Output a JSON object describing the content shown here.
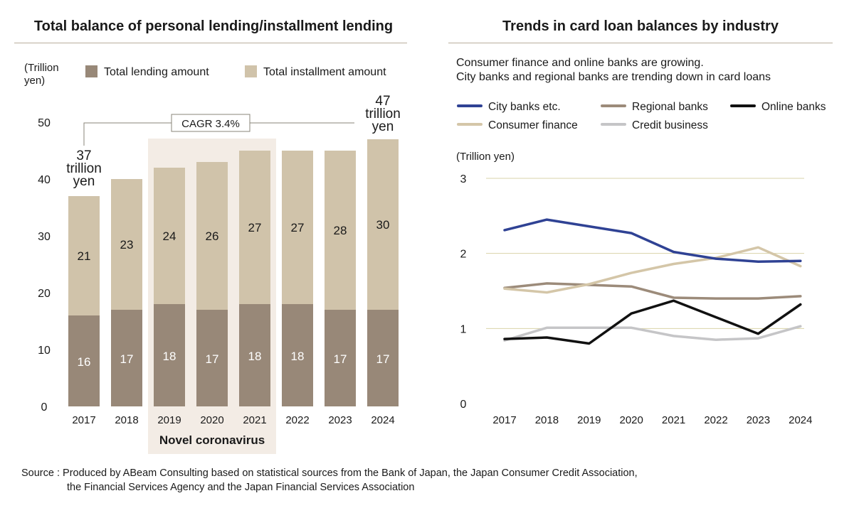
{
  "colors": {
    "lending": "#988878",
    "installment": "#d0c3aa",
    "highlight": "#f3ece5",
    "rule": "#b9ae9c",
    "grid": "#d9d3a8",
    "city": "#2f4294",
    "regional": "#9c8b7a",
    "online": "#111111",
    "consumer": "#d4c6a8",
    "credit": "#c5c5c7"
  },
  "left": {
    "title": "Total balance of personal lending/installment lending",
    "unit": "(Trillion yen)",
    "legend": [
      "Total lending amount",
      "Total installment amount"
    ],
    "cagr": "CAGR 3.4%",
    "start_total": "37 trillion yen",
    "end_total": "47 trillion yen",
    "highlight_label": "Novel coronavirus"
  },
  "right": {
    "title": "Trends in card loan balances by industry",
    "subtitle1": "Consumer finance and online banks are growing.",
    "subtitle2": "City banks and regional banks are trending down in card loans",
    "unit": "(Trillion yen)"
  },
  "source": {
    "line1": "Source : Produced by ABeam Consulting based on statistical sources from the Bank of Japan, the Japan Consumer Credit Association,",
    "line2": "the Financial Services Agency and the Japan Financial Services Association"
  },
  "chart_data": [
    {
      "type": "bar",
      "stacked": true,
      "categories": [
        "2017",
        "2018",
        "2019",
        "2020",
        "2021",
        "2022",
        "2023",
        "2024"
      ],
      "series": [
        {
          "name": "Total lending amount",
          "values": [
            16,
            17,
            18,
            17,
            18,
            18,
            17,
            17
          ]
        },
        {
          "name": "Total installment amount",
          "values": [
            21,
            23,
            24,
            26,
            27,
            27,
            28,
            30
          ]
        }
      ],
      "ylim": [
        0,
        50
      ],
      "yticks": [
        0,
        10,
        20,
        30,
        40,
        50
      ],
      "highlight_categories": [
        "2019",
        "2020",
        "2021"
      ],
      "legend_position": "top"
    },
    {
      "type": "line",
      "x": [
        "2017",
        "2018",
        "2019",
        "2020",
        "2021",
        "2022",
        "2023",
        "2024"
      ],
      "series": [
        {
          "name": "City banks etc.",
          "color_key": "city",
          "values": [
            2.31,
            2.45,
            2.36,
            2.27,
            2.02,
            1.93,
            1.89,
            1.9
          ]
        },
        {
          "name": "Regional banks",
          "color_key": "regional",
          "values": [
            1.54,
            1.6,
            1.58,
            1.56,
            1.41,
            1.4,
            1.4,
            1.43
          ]
        },
        {
          "name": "Online banks",
          "color_key": "online",
          "values": [
            0.86,
            0.88,
            0.8,
            1.2,
            1.37,
            1.15,
            0.93,
            1.32
          ]
        },
        {
          "name": "Consumer finance",
          "color_key": "consumer",
          "values": [
            1.53,
            1.48,
            1.59,
            1.74,
            1.86,
            1.94,
            2.08,
            1.83
          ]
        },
        {
          "name": "Credit business",
          "color_key": "credit",
          "values": [
            0.84,
            1.01,
            1.01,
            1.01,
            0.9,
            0.85,
            0.87,
            1.03
          ]
        }
      ],
      "ylim": [
        0,
        3
      ],
      "yticks": [
        0,
        1,
        2,
        3
      ],
      "grid": true,
      "legend_position": "top"
    }
  ]
}
